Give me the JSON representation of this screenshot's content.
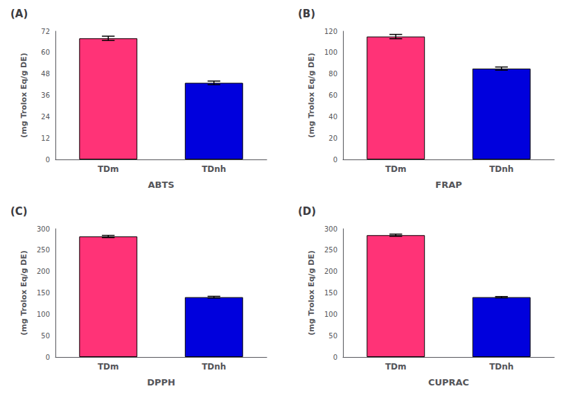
{
  "chart_data": [
    {
      "type": "bar",
      "title": "(A)",
      "xlabel": "ABTS",
      "ylabel": "(mg Trolox Eq/g DE)",
      "categories": [
        "TDm",
        "TDnh"
      ],
      "values": [
        68.0,
        43.0
      ],
      "errors": [
        1.2,
        1.0
      ],
      "colors": [
        "#FF3377",
        "#0000DD"
      ],
      "ylim": [
        0,
        72
      ],
      "yticks": [
        0,
        12,
        24,
        36,
        48,
        60,
        72
      ],
      "grid": false
    },
    {
      "type": "bar",
      "title": "(B)",
      "xlabel": "FRAP",
      "ylabel": "(mg Trolox Eq/g DE)",
      "categories": [
        "TDm",
        "TDnh"
      ],
      "values": [
        115.0,
        85.0
      ],
      "errors": [
        2.0,
        1.5
      ],
      "colors": [
        "#FF3377",
        "#0000DD"
      ],
      "ylim": [
        0,
        120
      ],
      "yticks": [
        0,
        20,
        40,
        60,
        80,
        100,
        120
      ],
      "grid": false
    },
    {
      "type": "bar",
      "title": "(C)",
      "xlabel": "DPPH",
      "ylabel": "(mg Trolox Eq/g DE)",
      "categories": [
        "TDm",
        "TDnh"
      ],
      "values": [
        282.0,
        140.0
      ],
      "errors": [
        2.5,
        2.0
      ],
      "colors": [
        "#FF3377",
        "#0000DD"
      ],
      "ylim": [
        0,
        300
      ],
      "yticks": [
        0,
        50,
        100,
        150,
        200,
        250,
        300
      ],
      "grid": false
    },
    {
      "type": "bar",
      "title": "(D)",
      "xlabel": "CUPRAC",
      "ylabel": "(mg Trolox Eq/g DE)",
      "categories": [
        "TDm",
        "TDnh"
      ],
      "values": [
        285.0,
        140.0
      ],
      "errors": [
        2.5,
        1.5
      ],
      "colors": [
        "#FF3377",
        "#0000DD"
      ],
      "ylim": [
        0,
        300
      ],
      "yticks": [
        0,
        50,
        100,
        150,
        200,
        250,
        300
      ],
      "grid": false
    }
  ]
}
